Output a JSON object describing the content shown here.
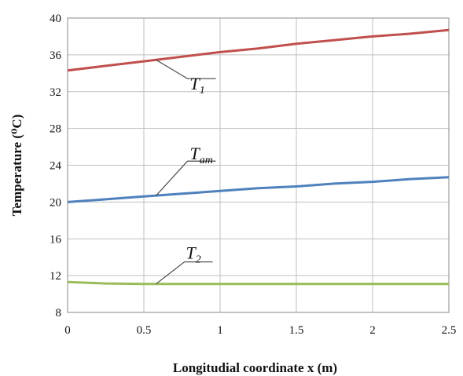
{
  "chart_data": {
    "type": "line",
    "xlabel": "Longitudial coordinate x (m)",
    "ylabel": "Temperature (⁰C)",
    "xlim": [
      0,
      2.5
    ],
    "ylim": [
      8,
      40
    ],
    "xticks": [
      0,
      0.5,
      1,
      1.5,
      2,
      2.5
    ],
    "xtick_labels": [
      "0",
      "0.5",
      "1",
      "1.5",
      "2",
      "2.5"
    ],
    "yticks": [
      8,
      12,
      16,
      20,
      24,
      28,
      32,
      36,
      40
    ],
    "ytick_labels": [
      "8",
      "12",
      "16",
      "20",
      "24",
      "28",
      "32",
      "36",
      "40"
    ],
    "grid": true,
    "series": [
      {
        "name": "T1",
        "label_main": "T",
        "label_sub": "1",
        "color": "#c0504d",
        "x": [
          0,
          0.25,
          0.5,
          0.75,
          1,
          1.25,
          1.5,
          1.75,
          2,
          2.25,
          2.5
        ],
        "y": [
          34.3,
          34.8,
          35.3,
          35.8,
          36.3,
          36.7,
          37.2,
          37.6,
          38.0,
          38.3,
          38.7
        ]
      },
      {
        "name": "Tam",
        "label_main": "T",
        "label_sub": "am",
        "color": "#4f81bd",
        "x": [
          0,
          0.25,
          0.5,
          0.75,
          1,
          1.25,
          1.5,
          1.75,
          2,
          2.25,
          2.5
        ],
        "y": [
          20.0,
          20.3,
          20.6,
          20.9,
          21.2,
          21.5,
          21.7,
          22.0,
          22.2,
          22.5,
          22.7
        ]
      },
      {
        "name": "T2",
        "label_main": "T",
        "label_sub": "2",
        "color": "#9bbb59",
        "x": [
          0,
          0.25,
          0.5,
          0.75,
          1,
          1.25,
          1.5,
          1.75,
          2,
          2.25,
          2.5
        ],
        "y": [
          11.3,
          11.15,
          11.1,
          11.1,
          11.1,
          11.1,
          11.1,
          11.1,
          11.1,
          11.1,
          11.1
        ]
      }
    ]
  }
}
